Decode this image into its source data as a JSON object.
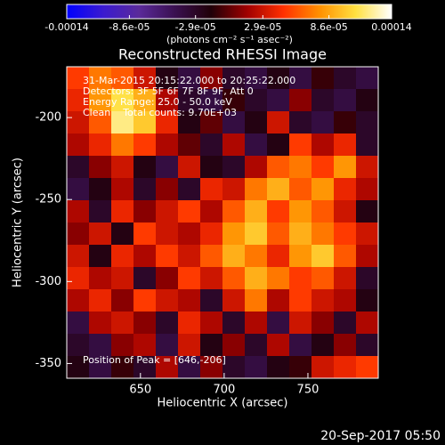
{
  "chart_data": {
    "type": "heatmap",
    "title": "Reconstructed RHESSI Image",
    "x_label": "Heliocentric X (arcsec)",
    "y_label": "Heliocentric Y (arcsec)",
    "colorbar_label": "(photons cm⁻² s⁻¹ asec⁻²)",
    "annotations": [
      "31-Mar-2015 20:15:22.000 to 20:25:22.000",
      "Detectors: 3F 5F 6F 7F 8F 9F, Att 0",
      "Energy Range: 25.0 - 50.0 keV",
      "Clean    Total counts: 9.70E+03"
    ],
    "peak_label": "Position of Peak = [646,-206]",
    "timestamp": "20-Sep-2017 05:50",
    "xlim": [
      606,
      792
    ],
    "ylim": [
      -359,
      -169
    ],
    "xticks": [
      650,
      700,
      750
    ],
    "yticks": [
      -200,
      -250,
      -300,
      -350
    ],
    "clim": [
      -0.00014,
      0.00014
    ],
    "cticks": [
      -0.00014,
      {
        "value": -8.6e-05,
        "label": "-8.6e-05"
      },
      {
        "value": -2.9e-05,
        "label": "-2.9e-05"
      },
      {
        "value": 2.9e-05,
        "label": "2.9e-05"
      },
      {
        "value": 8.6e-05,
        "label": "8.6e-05"
      },
      0.00014
    ],
    "colormap": [
      "#0000ff",
      "#3a1ad0",
      "#5a2a9a",
      "#3a1050",
      "#200008",
      "#a00000",
      "#ff3000",
      "#ff9000",
      "#ffe040",
      "#ffffff"
    ],
    "z": [
      [
        5e-05,
        7e-05,
        6e-05,
        3e-05,
        -2e-05,
        -4e-05,
        1e-05,
        -3e-05,
        -4e-05,
        -2e-05,
        -4e-05,
        -1e-05,
        -3e-05,
        -4e-05
      ],
      [
        4e-05,
        8e-05,
        0.00011,
        9e-05,
        2e-05,
        -3e-05,
        -4e-05,
        -1e-05,
        -3e-05,
        -4e-05,
        1e-05,
        -3e-05,
        -4e-05,
        -2e-05
      ],
      [
        3e-05,
        6e-05,
        0.00012,
        0.0001,
        4e-05,
        -2e-05,
        0,
        -4e-05,
        -2e-05,
        3e-05,
        -3e-05,
        -4e-05,
        -1e-05,
        -3e-05
      ],
      [
        2e-05,
        4e-05,
        7e-05,
        5e-05,
        2e-05,
        0,
        -3e-05,
        2e-05,
        -4e-05,
        -2e-05,
        5e-05,
        2e-05,
        4e-05,
        -3e-05
      ],
      [
        -3e-05,
        1e-05,
        3e-05,
        -2e-05,
        -4e-05,
        3e-05,
        -2e-05,
        -3e-05,
        2e-05,
        6e-05,
        7e-05,
        5e-05,
        8e-05,
        3e-05
      ],
      [
        -4e-05,
        -2e-05,
        2e-05,
        -3e-05,
        1e-05,
        -3e-05,
        4e-05,
        3e-05,
        7e-05,
        9e-05,
        6e-05,
        8e-05,
        4e-05,
        2e-05
      ],
      [
        2e-05,
        -3e-05,
        4e-05,
        1e-05,
        3e-05,
        5e-05,
        2e-05,
        6e-05,
        9e-05,
        5e-05,
        8e-05,
        6e-05,
        3e-05,
        -2e-05
      ],
      [
        1e-05,
        3e-05,
        -2e-05,
        5e-05,
        3e-05,
        2e-05,
        4e-05,
        8e-05,
        0.0001,
        6e-05,
        9e-05,
        7e-05,
        5e-05,
        3e-05
      ],
      [
        3e-05,
        -2e-05,
        4e-05,
        2e-05,
        5e-05,
        3e-05,
        6e-05,
        9e-05,
        7e-05,
        4e-05,
        8e-05,
        0.0001,
        6e-05,
        2e-05
      ],
      [
        4e-05,
        2e-05,
        3e-05,
        -3e-05,
        1e-05,
        5e-05,
        3e-05,
        6e-05,
        9e-05,
        7e-05,
        5e-05,
        6e-05,
        3e-05,
        -3e-05
      ],
      [
        2e-05,
        4e-05,
        1e-05,
        5e-05,
        3e-05,
        2e-05,
        -3e-05,
        3e-05,
        7e-05,
        2e-05,
        5e-05,
        3e-05,
        2e-05,
        -2e-05
      ],
      [
        -4e-05,
        2e-05,
        3e-05,
        1e-05,
        -3e-05,
        4e-05,
        2e-05,
        -3e-05,
        2e-05,
        -4e-05,
        3e-05,
        1e-05,
        -3e-05,
        2e-05
      ],
      [
        -3e-05,
        -4e-05,
        1e-05,
        2e-05,
        -4e-05,
        3e-05,
        -2e-05,
        1e-05,
        -3e-05,
        2e-05,
        -4e-05,
        -2e-05,
        1e-05,
        -3e-05
      ],
      [
        -2e-05,
        -4e-05,
        -1e-05,
        -3e-05,
        2e-05,
        -4e-05,
        1e-05,
        -3e-05,
        -4e-05,
        -2e-05,
        -1e-05,
        3e-05,
        4e-05,
        5e-05
      ]
    ]
  }
}
